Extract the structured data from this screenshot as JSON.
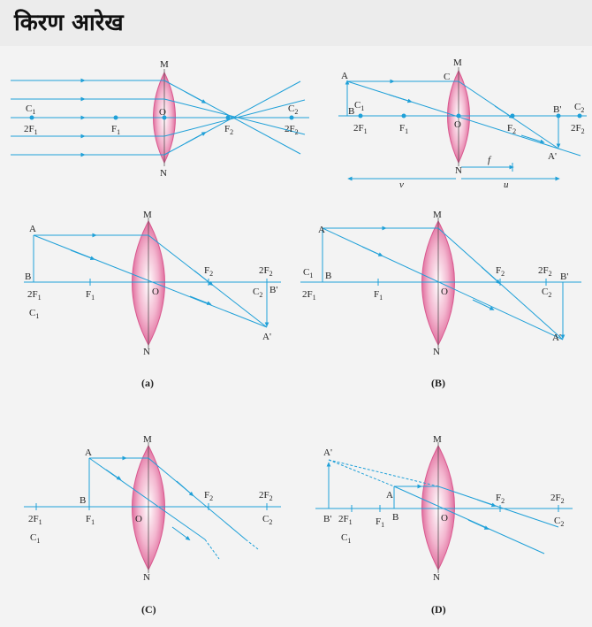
{
  "page": {
    "title": "किरण आरेख"
  },
  "colors": {
    "ray": "#1fa0d8",
    "lens_center": "#ffffff",
    "lens_edge": "#d9588f",
    "text": "#222222"
  },
  "diagrams": {
    "top_left": {
      "labels": {
        "M": "M",
        "N": "N",
        "O": "O",
        "C1": "C",
        "F1": "F",
        "F2": "F",
        "C2": "C",
        "2F1": "2F",
        "2F2": "2F",
        "sub1": "1",
        "sub2": "2"
      }
    },
    "top_right": {
      "labels": {
        "A": "A",
        "B": "B",
        "C1": "C",
        "F1": "F",
        "M": "M",
        "C": "C",
        "O": "O",
        "F2": "F",
        "N": "N",
        "Bp": "B'",
        "C2": "C",
        "2F1": "2F",
        "2F2": "2F",
        "Ap": "A'",
        "f": "f",
        "v": "v",
        "u": "u",
        "sub1": "1",
        "sub2": "2"
      }
    },
    "a": {
      "caption": "(a)",
      "labels": {
        "A": "A",
        "B": "B",
        "M": "M",
        "N": "N",
        "O": "O",
        "F1": "F",
        "F2": "F",
        "2F1": "2F",
        "2F2": "2F",
        "C1": "C",
        "C2": "C",
        "Bp": "B'",
        "Ap": "A'",
        "sub1": "1",
        "sub2": "2"
      }
    },
    "b": {
      "caption": "(B)",
      "labels": {
        "A": "A",
        "B": "B",
        "M": "M",
        "N": "N",
        "O": "O",
        "F1": "F",
        "F2": "F",
        "2F1": "2F",
        "2F2": "2F",
        "C1": "C",
        "C2": "C",
        "Bp": "B'",
        "Ap": "A'",
        "sub1": "1",
        "sub2": "2"
      }
    },
    "c": {
      "caption": "(C)",
      "labels": {
        "A": "A",
        "B": "B",
        "M": "M",
        "N": "N",
        "O": "O",
        "F1": "F",
        "F2": "F",
        "2F1": "2F",
        "2F2": "2F",
        "C1": "C",
        "C2": "C",
        "sub1": "1",
        "sub2": "2"
      }
    },
    "d": {
      "caption": "(D)",
      "labels": {
        "A": "A",
        "B": "B",
        "M": "M",
        "N": "N",
        "O": "O",
        "F1": "F",
        "F2": "F",
        "2F1": "2F",
        "2F2": "2F",
        "C1": "C",
        "C2": "C",
        "Bp": "B'",
        "Ap": "A'",
        "sub1": "1",
        "sub2": "2"
      }
    }
  }
}
